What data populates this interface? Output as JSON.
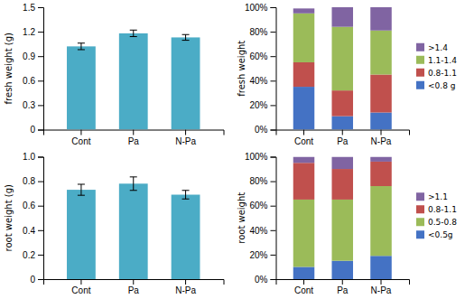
{
  "chart_data": [
    {
      "type": "bar",
      "categories": [
        "Cont",
        "Pa",
        "N-Pa"
      ],
      "values": [
        1.02,
        1.18,
        1.13
      ],
      "errors": [
        0.04,
        0.04,
        0.035
      ],
      "color": "#4BACC6",
      "y_label": "fresh weight (g)",
      "ylim": [
        0,
        1.5
      ],
      "yticks": [
        0,
        0.3,
        0.6,
        0.9,
        1.2,
        1.5
      ]
    },
    {
      "type": "bar",
      "stacked": true,
      "categories": [
        "Cont",
        "Pa",
        "N-Pa"
      ],
      "series": [
        {
          "name": "<0.8 g",
          "color": "#4472C4",
          "values": [
            35,
            11,
            14
          ]
        },
        {
          "name": "0.8-1.1",
          "color": "#C0504D",
          "values": [
            20,
            21,
            31
          ]
        },
        {
          "name": "1.1-1.4",
          "color": "#9BBB59",
          "values": [
            40,
            52,
            36
          ]
        },
        {
          "name": ">1.4",
          "color": "#8064A2",
          "values": [
            4,
            16,
            19
          ]
        }
      ],
      "y_label": "fresh weight",
      "ylim": [
        0,
        100
      ],
      "yticks": [
        {
          "value": 0,
          "label": "0%"
        },
        {
          "value": 20,
          "label": "20%"
        },
        {
          "value": 40,
          "label": "40%"
        },
        {
          "value": 60,
          "label": "60%"
        },
        {
          "value": 80,
          "label": "80%"
        },
        {
          "value": 100,
          "label": "100%"
        }
      ],
      "legend": "right"
    },
    {
      "type": "bar",
      "categories": [
        "Cont",
        "Pa",
        "N-Pa"
      ],
      "values": [
        0.73,
        0.78,
        0.69
      ],
      "errors": [
        0.045,
        0.055,
        0.035
      ],
      "color": "#4BACC6",
      "y_label": "root weight (g)",
      "ylim": [
        0,
        1.0
      ],
      "yticks": [
        0,
        0.2,
        0.4,
        0.6,
        0.8,
        {
          "value": 1.0,
          "label": "1.0"
        }
      ]
    },
    {
      "type": "bar",
      "stacked": true,
      "categories": [
        "Cont",
        "Pa",
        "N-Pa"
      ],
      "series": [
        {
          "name": "<0.5g",
          "color": "#4472C4",
          "values": [
            10,
            15,
            19
          ]
        },
        {
          "name": "0.5-0.8",
          "color": "#9BBB59",
          "values": [
            55,
            50,
            57
          ]
        },
        {
          "name": "0.8-1.1",
          "color": "#C0504D",
          "values": [
            30,
            25,
            20
          ]
        },
        {
          "name": ">1.1",
          "color": "#8064A2",
          "values": [
            5,
            10,
            4
          ]
        }
      ],
      "y_label": "root weight",
      "ylim": [
        0,
        100
      ],
      "yticks": [
        {
          "value": 0,
          "label": "0%"
        },
        {
          "value": 20,
          "label": "20%"
        },
        {
          "value": 40,
          "label": "40%"
        },
        {
          "value": 60,
          "label": "60%"
        },
        {
          "value": 80,
          "label": "80%"
        },
        {
          "value": 100,
          "label": "100%"
        }
      ],
      "legend": "right"
    }
  ]
}
